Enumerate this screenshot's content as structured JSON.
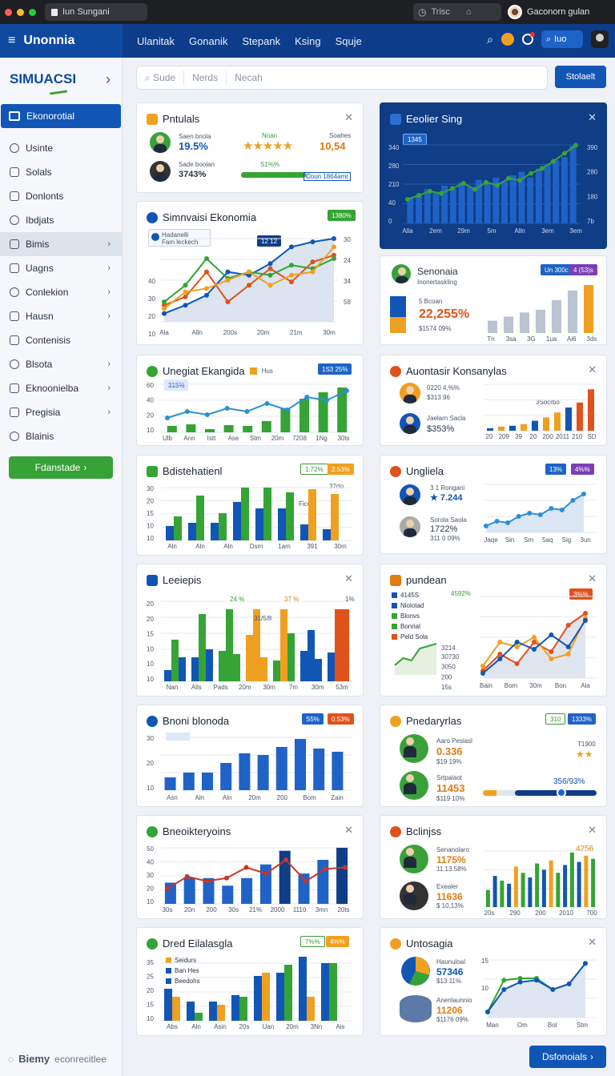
{
  "window": {
    "tab_title": "Iun Sungani",
    "url_text": "Trisc",
    "user_name": "Gaconorn gulan"
  },
  "header": {
    "brand": "Unonnia",
    "nav": [
      "Ulanitak",
      "Gonanik",
      "Stepank",
      "Ksing",
      "Squje"
    ],
    "search_label": "Iuo"
  },
  "sidebar": {
    "brand": "SIMUACSI",
    "active_item": "Ekonorotial",
    "items": [
      {
        "label": "Usinte",
        "arrow": false,
        "highlight": false
      },
      {
        "label": "Solals",
        "arrow": false,
        "highlight": false
      },
      {
        "label": "Donlonts",
        "arrow": false,
        "highlight": false
      },
      {
        "label": "Ibdjats",
        "arrow": false,
        "highlight": false
      },
      {
        "label": "Bimis",
        "arrow": true,
        "highlight": true
      },
      {
        "label": "Uagns",
        "arrow": true,
        "highlight": false
      },
      {
        "label": "Conlekion",
        "arrow": true,
        "highlight": false
      },
      {
        "label": "Hausn",
        "arrow": true,
        "highlight": false
      },
      {
        "label": "Contenisis",
        "arrow": false,
        "highlight": false
      },
      {
        "label": "Blsota",
        "arrow": true,
        "highlight": false
      },
      {
        "label": "Eknoonielba",
        "arrow": true,
        "highlight": false
      },
      {
        "label": "Pregisia",
        "arrow": true,
        "highlight": false
      },
      {
        "label": "Blainis",
        "arrow": false,
        "highlight": false
      }
    ],
    "cta": "Fdanstade",
    "footer_brand": "Biemy",
    "footer_text": "econrecitlee"
  },
  "search": {
    "fields": [
      "Sude",
      "Nerds",
      "Necah"
    ],
    "button": "Stolaelt"
  },
  "footer_button": "Dsfonoials",
  "cards": {
    "c1": {
      "title": "Pntulals",
      "r1_label": "Saen bnola",
      "r1_value": "19.5%",
      "r2_label": "Sade boolan",
      "r2_value": "3743%",
      "mid_label": "Noan",
      "mid_bar_label": "S1%%",
      "right_label": "Soahes",
      "right_value": "10,54",
      "right_tag": "Coun 1864amr"
    },
    "c2": {
      "title": "Eeolier Sing",
      "badge": "1345"
    },
    "c3": {
      "title": "Simnvaisi Ekonomia",
      "badge1": "1380%",
      "badge2": "12 12",
      "legend1": "Hadanelli",
      "legend2": "Fam leckech",
      "ytick": [
        "40",
        "30",
        "20",
        "10"
      ],
      "xtick": [
        "Ala",
        "Alln",
        "200s",
        "20m",
        "21m",
        "30m"
      ]
    },
    "c4": {
      "title": "Senonaia",
      "subtitle": "Inonertaskling",
      "badge1": "Un 300c",
      "badge2": "4 (53)s",
      "small": "5 Bcoan",
      "value": "22,255%",
      "sub": "$1574 09%",
      "xtick": [
        "Tn",
        "3sa",
        "3G",
        "1ua",
        "Ai6",
        "3ds"
      ]
    },
    "c5": {
      "title": "Unegiat Ekangida",
      "legend": "Hus",
      "badge": "1S3 25%",
      "badge2": "315%",
      "ytick": [
        "60",
        "40",
        "20",
        "10"
      ],
      "xtick": [
        "Ulb",
        "Ann",
        "Istt",
        "Ase",
        "Stm",
        "20m",
        "7208",
        "1Ng",
        "30ts"
      ]
    },
    "c6": {
      "title": "Auontasir Konsanylas",
      "r1_label": "0220 4,%%",
      "r1_value": "$313 96",
      "r2_label": "Jaelarn Sacla",
      "r2_value": "$353%",
      "badge": "3Socrbo"
    },
    "c7": {
      "title": "Bdistehatienl",
      "badge1": "1.72%",
      "badge2": "2.53%",
      "badge3": "37rto",
      "badge4": "Fico",
      "ytick": [
        "30",
        "20",
        "15",
        "10",
        "10"
      ],
      "xtick": [
        "Aln",
        "Aln",
        "Aln",
        "Dsm",
        "1am",
        "391",
        "30m"
      ]
    },
    "c8": {
      "title": "Ungliela",
      "badge1": "13%",
      "badge2": "4%%",
      "r1_label": "3 1 Rongani",
      "r1_value": "7.244",
      "r2_label": "Sorola Saola",
      "r2_value": "1722%",
      "r2_sub": "311 0 09%",
      "xtick": [
        "Jaqe",
        "Sin",
        "Sm",
        "5aq",
        "Sig",
        "3un"
      ]
    },
    "c9": {
      "title": "Leeiepis",
      "badges": [
        "24 %",
        "37 %"
      ],
      "bar_labels": [
        "31/5/8",
        "1%"
      ],
      "ytick": [
        "20",
        "20",
        "15",
        "10",
        "10",
        "10"
      ],
      "xtick": [
        "Nan",
        "Alls",
        "Pads",
        "20m",
        "30m",
        "7m",
        "30m",
        "53m"
      ]
    },
    "c10": {
      "title": "pundean",
      "badge": "4592%",
      "badge2": "3%%",
      "legend": [
        "4145S",
        "Nlolotad",
        "Blonvs",
        "Bonrial",
        "Peld Sola"
      ],
      "ytick": [
        "30730",
        "3050",
        "200",
        "15s"
      ],
      "val_label": "3214",
      "xtick": [
        "Bain",
        "Bom",
        "30m",
        "Bon",
        "Ala"
      ]
    },
    "c11": {
      "title": "Bnoni blonoda",
      "badge1": "S5%",
      "badge2": "0.53%",
      "ytick": [
        "30",
        "20",
        "10"
      ],
      "xtick": [
        "Asn",
        "Aln",
        "Aln",
        "20m",
        "200",
        "Bom",
        "Zain"
      ]
    },
    "c12": {
      "title": "Pnedaryrlas",
      "badge1": "310",
      "badge2": "1333%",
      "r1_label": "Aaro Pesiasl",
      "r1_value": "0.336",
      "r1_sub": "$19 19%",
      "r2_label": "Srtpalaot",
      "r2_value": "11453",
      "r2_sub": "$119 10%",
      "right_top": "T1900",
      "right_bot": "356/93%"
    },
    "c13": {
      "title": "Bneoikteryoins",
      "ytick": [
        "50",
        "40",
        "30",
        "20",
        "10"
      ],
      "xtick": [
        "30s",
        "20n",
        "200",
        "30s",
        "21%",
        "2000",
        "1110",
        "3mn",
        "20ts"
      ]
    },
    "c14": {
      "title": "Bclinjss",
      "badge": "4256",
      "r1_label": "Senanolaro",
      "r1_value": "1175%",
      "r1_sub": "11.13.58%",
      "r2_label": "Exealer",
      "r2_value": "11636",
      "r2_sub": "$ 10,13%"
    },
    "c15": {
      "title": "Dred Eilalasgla",
      "badge1": "7%%",
      "badge2": "4%%",
      "legend": [
        "Seidurs",
        "Ban Hes",
        "Beedohs"
      ],
      "ytick": [
        "35",
        "25",
        "20",
        "15",
        "10"
      ],
      "xtick": [
        "Abs",
        "Aln",
        "Asin",
        "20s",
        "Uan",
        "20m",
        "3Nn",
        "Ais"
      ]
    },
    "c16": {
      "title": "Untosagia",
      "r1_label": "Haunuloal",
      "r1_value": "57346",
      "r1_sub": "$13 11%",
      "r2_label": "Anenlaunnio",
      "r2_value": "11206",
      "r2_sub": "$1176 09%",
      "ytick": [
        "15",
        "10"
      ],
      "xtick": [
        "Man",
        "Om",
        "Bol",
        "Stm"
      ]
    }
  },
  "chart_data": [
    {
      "type": "bar",
      "title": "Eeolier Sing",
      "values": [
        22,
        25,
        30,
        27,
        33,
        30,
        36,
        32,
        38,
        35,
        40,
        37,
        42,
        45,
        40,
        48,
        52,
        55,
        58,
        68
      ],
      "ylabel": "",
      "ytick": [
        "340",
        "280",
        "210",
        "40",
        "0"
      ],
      "xtick": [
        "Alla",
        "2em",
        "29m",
        "5m",
        "Alln",
        "3em",
        "3em"
      ],
      "right_ticks": [
        "390",
        "280",
        "180",
        "7b"
      ],
      "line": [
        24,
        28,
        32,
        30,
        35,
        40,
        34,
        41,
        38,
        45,
        43,
        50,
        55,
        62,
        70,
        78
      ]
    },
    {
      "type": "line",
      "title": "Simnvaisi Ekonomia",
      "series": [
        {
          "values": [
            5,
            10,
            16,
            30,
            28,
            35,
            45,
            48,
            50
          ]
        },
        {
          "values": [
            10,
            15,
            30,
            12,
            22,
            32,
            24,
            36,
            40
          ]
        },
        {
          "values": [
            12,
            22,
            38,
            26,
            30,
            28,
            34,
            32,
            38
          ]
        },
        {
          "values": [
            8,
            18,
            20,
            25,
            30,
            22,
            28,
            30,
            45
          ]
        }
      ]
    }
  ]
}
